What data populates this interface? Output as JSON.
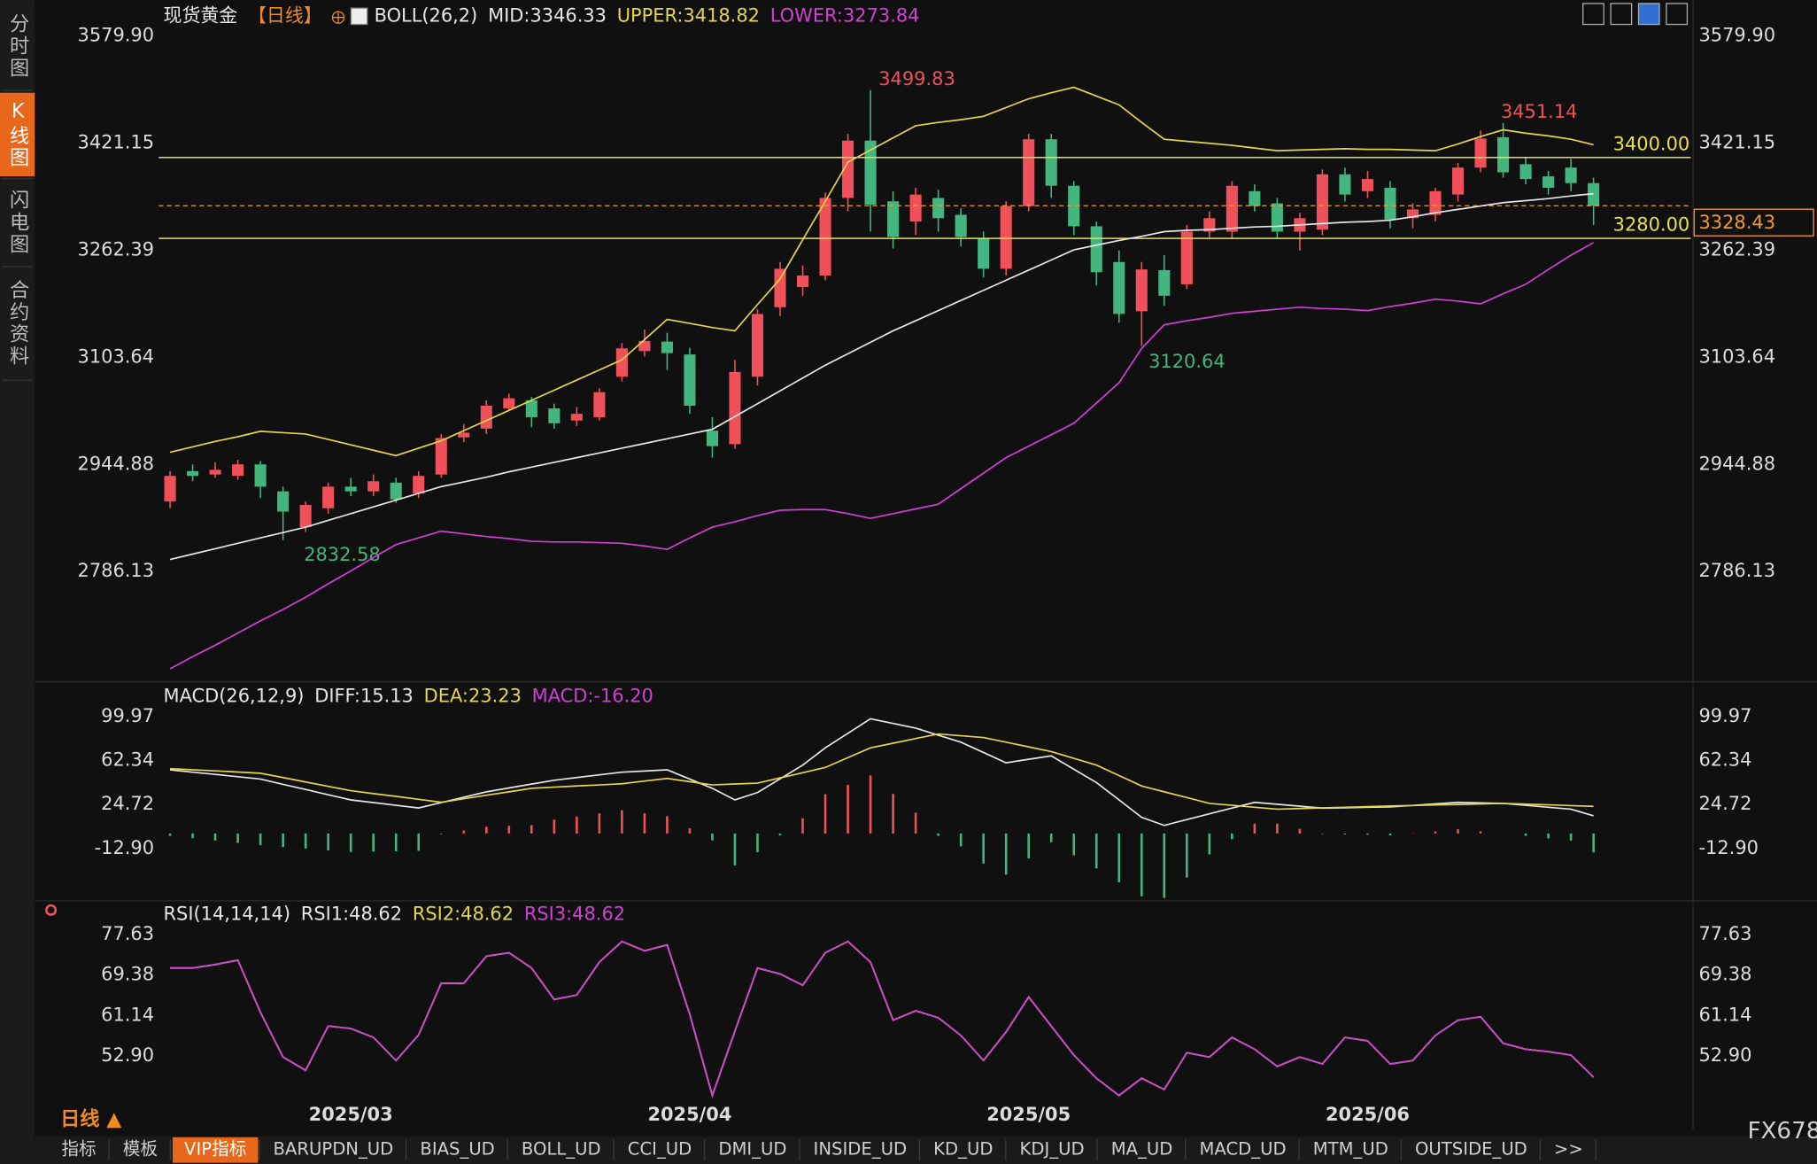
{
  "sidebar": [
    "分时图",
    "K线图",
    "闪电图",
    "合约资料"
  ],
  "sidebar_active": 1,
  "period_label": "日线 ▲",
  "watermark": "FX678",
  "tabs": [
    "指标",
    "模板",
    "VIP指标",
    "BARUPDN_UD",
    "BIAS_UD",
    "BOLL_UD",
    "CCI_UD",
    "DMI_UD",
    "INSIDE_UD",
    "KD_UD",
    "KDJ_UD",
    "MA_UD",
    "MACD_UD",
    "MTM_UD",
    "OUTSIDE_UD",
    ">>"
  ],
  "tabs_active": 2,
  "chart_data": [
    {
      "type": "candlestick",
      "title": "现货黄金",
      "period": "【日线】",
      "indicator": "BOLL(26,2)",
      "xlim": [
        -0.5,
        67.3
      ],
      "ylim": [
        2628,
        3599
      ],
      "yticks": [
        {
          "value": 3579.9,
          "label": "3579.90"
        },
        3421.15,
        3262.39,
        3103.64,
        2944.88,
        2786.13
      ],
      "up_color": "#f0505a",
      "down_color": "#43b57f",
      "last_color": "#f39a2c",
      "open": [
        2890,
        2935,
        2930,
        2928,
        2945,
        2905,
        2852,
        2880,
        2912,
        2905,
        2918,
        2902,
        2930,
        2985,
        2998,
        3028,
        3040,
        3028,
        3010,
        3015,
        3075,
        3113,
        3127,
        3108,
        2995,
        2975,
        3075,
        3178,
        3208,
        3225,
        3340,
        3425,
        3335,
        3305,
        3340,
        3315,
        3280,
        3235,
        3328,
        3427,
        3358,
        3298,
        3245,
        3172,
        3233,
        3212,
        3290,
        3290,
        3350,
        3332,
        3290,
        3293,
        3375,
        3350,
        3355,
        3310,
        3315,
        3345,
        3385,
        3430,
        3390,
        3372,
        3385,
        3362
      ],
      "high": [
        2935,
        2945,
        2948,
        2952,
        2950,
        2912,
        2890,
        2918,
        2925,
        2930,
        2925,
        2935,
        2990,
        3005,
        3040,
        3050,
        3045,
        3035,
        3030,
        3058,
        3125,
        3145,
        3140,
        3118,
        3015,
        3100,
        3175,
        3245,
        3240,
        3348,
        3435,
        3499.83,
        3350,
        3355,
        3352,
        3325,
        3290,
        3335,
        3435,
        3435,
        3365,
        3305,
        3262,
        3245,
        3255,
        3300,
        3320,
        3365,
        3360,
        3340,
        3318,
        3382,
        3385,
        3380,
        3365,
        3332,
        3355,
        3392,
        3440,
        3451.14,
        3400,
        3380,
        3398,
        3370
      ],
      "low": [
        2880,
        2920,
        2925,
        2922,
        2895,
        2832.58,
        2845,
        2872,
        2898,
        2898,
        2888,
        2895,
        2925,
        2978,
        2990,
        3025,
        3000,
        2998,
        3002,
        3010,
        3068,
        3105,
        3085,
        3020,
        2955,
        2968,
        3062,
        3165,
        3195,
        3218,
        3320,
        3290,
        3265,
        3285,
        3290,
        3268,
        3222,
        3225,
        3320,
        3340,
        3285,
        3210,
        3155,
        3120.64,
        3180,
        3205,
        3280,
        3280,
        3320,
        3280,
        3262,
        3285,
        3335,
        3340,
        3295,
        3295,
        3305,
        3335,
        3378,
        3370,
        3360,
        3345,
        3350,
        3300
      ],
      "close": [
        2928,
        2928,
        2937,
        2945,
        2912,
        2875,
        2885,
        2912,
        2905,
        2920,
        2893,
        2928,
        2984,
        2992,
        3032,
        3043,
        3015,
        3006,
        3020,
        3052,
        3117,
        3128,
        3110,
        3032,
        2972,
        3082,
        3168,
        3235,
        3225,
        3340,
        3425,
        3330,
        3282,
        3345,
        3310,
        3282,
        3235,
        3328,
        3427,
        3358,
        3298,
        3230,
        3168,
        3234,
        3195,
        3290,
        3310,
        3358,
        3328,
        3290,
        3310,
        3375,
        3345,
        3368,
        3308,
        3323,
        3350,
        3385,
        3428,
        3378,
        3368,
        3355,
        3362,
        3328.43
      ],
      "series": [
        {
          "name": "MID:3346.33",
          "color": "#e6e6e6",
          "values": [
            2804,
            2812,
            2820,
            2828,
            2836,
            2844,
            2852,
            2862,
            2872,
            2882,
            2892,
            2902,
            2912,
            2919,
            2926,
            2934,
            2941,
            2948,
            2955,
            2962,
            2969,
            2976,
            2983,
            2990,
            2997,
            3016,
            3035,
            3054,
            3073,
            3092,
            3109,
            3126,
            3143,
            3158,
            3173,
            3188,
            3203,
            3218,
            3233,
            3248,
            3263,
            3270,
            3277,
            3283,
            3290,
            3292,
            3293,
            3295,
            3297,
            3298,
            3300,
            3302,
            3304,
            3305,
            3307,
            3312,
            3318,
            3323,
            3328,
            3333,
            3336,
            3339,
            3343,
            3346.33
          ]
        },
        {
          "name": "UPPER:3418.82",
          "color": "#e3d64a",
          "values": [
            2963,
            2971,
            2979,
            2986,
            2994,
            2992,
            2990,
            2982,
            2974,
            2966,
            2958,
            2969,
            2980,
            2995,
            3010,
            3025,
            3040,
            3055,
            3070,
            3085,
            3100,
            3130,
            3160,
            3154,
            3148,
            3143,
            3182,
            3220,
            3278,
            3335,
            3393,
            3411,
            3429,
            3447,
            3452,
            3456,
            3461,
            3474,
            3487,
            3496,
            3504,
            3491,
            3478,
            3452,
            3427,
            3424,
            3421,
            3418,
            3414,
            3410,
            3411,
            3412,
            3413,
            3412,
            3412,
            3411,
            3410,
            3420,
            3431,
            3441,
            3436,
            3432,
            3427,
            3418.82
          ]
        },
        {
          "name": "LOWER:3273.84",
          "color": "#d23fd6",
          "values": [
            2642,
            2660,
            2677,
            2695,
            2713,
            2730,
            2748,
            2768,
            2787,
            2807,
            2826,
            2836,
            2846,
            2842,
            2838,
            2835,
            2831,
            2830,
            2830,
            2829,
            2828,
            2824,
            2819,
            2836,
            2852,
            2860,
            2869,
            2877,
            2878,
            2878,
            2872,
            2865,
            2872,
            2879,
            2886,
            2909,
            2932,
            2955,
            2972,
            2989,
            3006,
            3036,
            3066,
            3117,
            3152,
            3158,
            3163,
            3169,
            3172,
            3175,
            3178,
            3176,
            3175,
            3173,
            3179,
            3184,
            3190,
            3187,
            3183,
            3198,
            3212,
            3234,
            3255,
            3273.84
          ]
        }
      ],
      "hlines": [
        {
          "value": 3400,
          "label": "3400.00",
          "color": "#e8e04a"
        },
        {
          "value": 3280,
          "label": "3280.00",
          "color": "#e8e04a"
        }
      ]
    },
    {
      "type": "combo",
      "indicator": "MACD(26,12,9)",
      "xlim": [
        -0.5,
        67.3
      ],
      "ylim": [
        -55.5,
        125.7
      ],
      "yticks": [
        99.97,
        62.34,
        24.72,
        {
          "value": -12.9,
          "label": "-12.90"
        }
      ],
      "series": [
        {
          "name": "DIFF:15.13",
          "color": "#e6e6e6",
          "values": [
            54.4,
            52.4,
            50.5,
            48.5,
            46.5,
            42,
            37.6,
            33.1,
            28.7,
            26.4,
            24.1,
            21.8,
            26.4,
            31,
            35.6,
            38.9,
            42.2,
            45.5,
            47.8,
            50.1,
            52.4,
            53.4,
            54.4,
            46.5,
            38.6,
            28.7,
            35,
            46.7,
            58.4,
            73.2,
            85.6,
            98,
            94,
            90,
            84,
            78,
            69.2,
            60.4,
            63.4,
            66.3,
            54.9,
            43.5,
            28.7,
            13.8,
            6.9,
            11.9,
            16.8,
            21.7,
            26.6,
            25,
            23.3,
            21.7,
            22,
            22.4,
            22.7,
            24,
            25.3,
            26.6,
            26.2,
            25.7,
            24.1,
            22.4,
            20.8,
            15.13
          ]
        },
        {
          "name": "DEA:23.23",
          "color": "#e3d64a",
          "values": [
            55.4,
            54.4,
            53.5,
            52.5,
            51.5,
            47.8,
            44,
            40.3,
            36.6,
            34.1,
            31.7,
            29.2,
            26.7,
            29.7,
            32.7,
            35.6,
            38.6,
            39.6,
            40.6,
            41.5,
            42.5,
            44.8,
            47,
            44.3,
            41.5,
            42.3,
            43,
            47.5,
            51.9,
            56.4,
            64.8,
            73.2,
            77.1,
            81.1,
            85,
            83.5,
            82,
            78,
            74,
            70,
            64.2,
            58.4,
            49.5,
            40.6,
            35.6,
            30.7,
            25.7,
            24.1,
            22.4,
            20.8,
            21.3,
            21.9,
            22.4,
            22.9,
            23.5,
            23.9,
            24.4,
            24.8,
            25.3,
            25.7,
            25.1,
            24.5,
            23.8,
            23.23
          ]
        },
        {
          "name": "MACD:-16.20",
          "color": "#d23fd6",
          "style": "bar",
          "up_color": "#f0505a",
          "down_color": "#43b57f",
          "values": [
            -2,
            -4,
            -6,
            -8,
            -10,
            -11.6,
            -12.8,
            -14.4,
            -15.8,
            -15.4,
            -15.2,
            -14.8,
            -0.6,
            2.6,
            5.8,
            6.6,
            7.2,
            11.8,
            14.4,
            17.2,
            19.8,
            17.2,
            14.8,
            4.4,
            -5.8,
            -27.2,
            -16,
            -1.6,
            13,
            33.6,
            41.6,
            49.6,
            33.8,
            17.8,
            -2,
            -11,
            -25.6,
            -35.2,
            -21.2,
            -7.4,
            -18.6,
            -29.8,
            -41.6,
            -53.6,
            -55,
            -37.6,
            -17.8,
            -4.8,
            8.4,
            8.4,
            4,
            -0.4,
            -0.8,
            -1,
            -1.6,
            0.2,
            1.8,
            3.6,
            1.8,
            0,
            -2,
            -4.2,
            -6,
            -16.2
          ]
        }
      ]
    },
    {
      "type": "line",
      "indicator": "RSI(14,14,14)",
      "xlim": [
        -0.5,
        67.3
      ],
      "ylim": [
        43.7,
        83.75
      ],
      "yticks": [
        77.63,
        69.38,
        61.14,
        {
          "value": 52.9,
          "label": "52.90"
        }
      ],
      "xticks": [
        {
          "value": 8,
          "label": "2025/03"
        },
        {
          "value": 23,
          "label": "2025/04"
        },
        {
          "value": 38,
          "label": "2025/05"
        },
        {
          "value": 53,
          "label": "2025/06"
        }
      ],
      "series": [
        {
          "name": "RSI1:48.62",
          "color": "#e6e6e6",
          "values": [
            70.8,
            70.8,
            71.5,
            72.4,
            61.8,
            52.7,
            50,
            59,
            58.5,
            56.7,
            52,
            57.2,
            67.7,
            67.7,
            73.2,
            73.9,
            70.8,
            64.4,
            65.3,
            72,
            76.2,
            74.3,
            75.5,
            61.4,
            44.9,
            58,
            70.8,
            69.6,
            67.3,
            73.9,
            76.2,
            72,
            60.2,
            62.1,
            60.7,
            57.1,
            52,
            57.8,
            64.9,
            59,
            53.1,
            48.4,
            44.9,
            48.4,
            46.1,
            53.6,
            52.7,
            56.7,
            54.3,
            50.8,
            52.7,
            51.3,
            56.7,
            56,
            51.3,
            52,
            57.1,
            60.2,
            60.9,
            55.5,
            54.3,
            53.8,
            53.1,
            48.62
          ]
        },
        {
          "name": "RSI2:48.62",
          "color": "#e3d64a",
          "values": [
            70.8,
            70.8,
            71.5,
            72.4,
            61.8,
            52.7,
            50,
            59,
            58.5,
            56.7,
            52,
            57.2,
            67.7,
            67.7,
            73.2,
            73.9,
            70.8,
            64.4,
            65.3,
            72,
            76.2,
            74.3,
            75.5,
            61.4,
            44.9,
            58,
            70.8,
            69.6,
            67.3,
            73.9,
            76.2,
            72,
            60.2,
            62.1,
            60.7,
            57.1,
            52,
            57.8,
            64.9,
            59,
            53.1,
            48.4,
            44.9,
            48.4,
            46.1,
            53.6,
            52.7,
            56.7,
            54.3,
            50.8,
            52.7,
            51.3,
            56.7,
            56,
            51.3,
            52,
            57.1,
            60.2,
            60.9,
            55.5,
            54.3,
            53.8,
            53.1,
            48.62
          ]
        },
        {
          "name": "RSI3:48.62",
          "color": "#d23fd6",
          "values": [
            70.8,
            70.8,
            71.5,
            72.4,
            61.8,
            52.7,
            50,
            59,
            58.5,
            56.7,
            52,
            57.2,
            67.7,
            67.7,
            73.2,
            73.9,
            70.8,
            64.4,
            65.3,
            72,
            76.2,
            74.3,
            75.5,
            61.4,
            44.9,
            58,
            70.8,
            69.6,
            67.3,
            73.9,
            76.2,
            72,
            60.2,
            62.1,
            60.7,
            57.1,
            52,
            57.8,
            64.9,
            59,
            53.1,
            48.4,
            44.9,
            48.4,
            46.1,
            53.6,
            52.7,
            56.7,
            54.3,
            50.8,
            52.7,
            51.3,
            56.7,
            56,
            51.3,
            52,
            57.1,
            60.2,
            60.9,
            55.5,
            54.3,
            53.8,
            53.1,
            48.62
          ]
        }
      ]
    }
  ]
}
